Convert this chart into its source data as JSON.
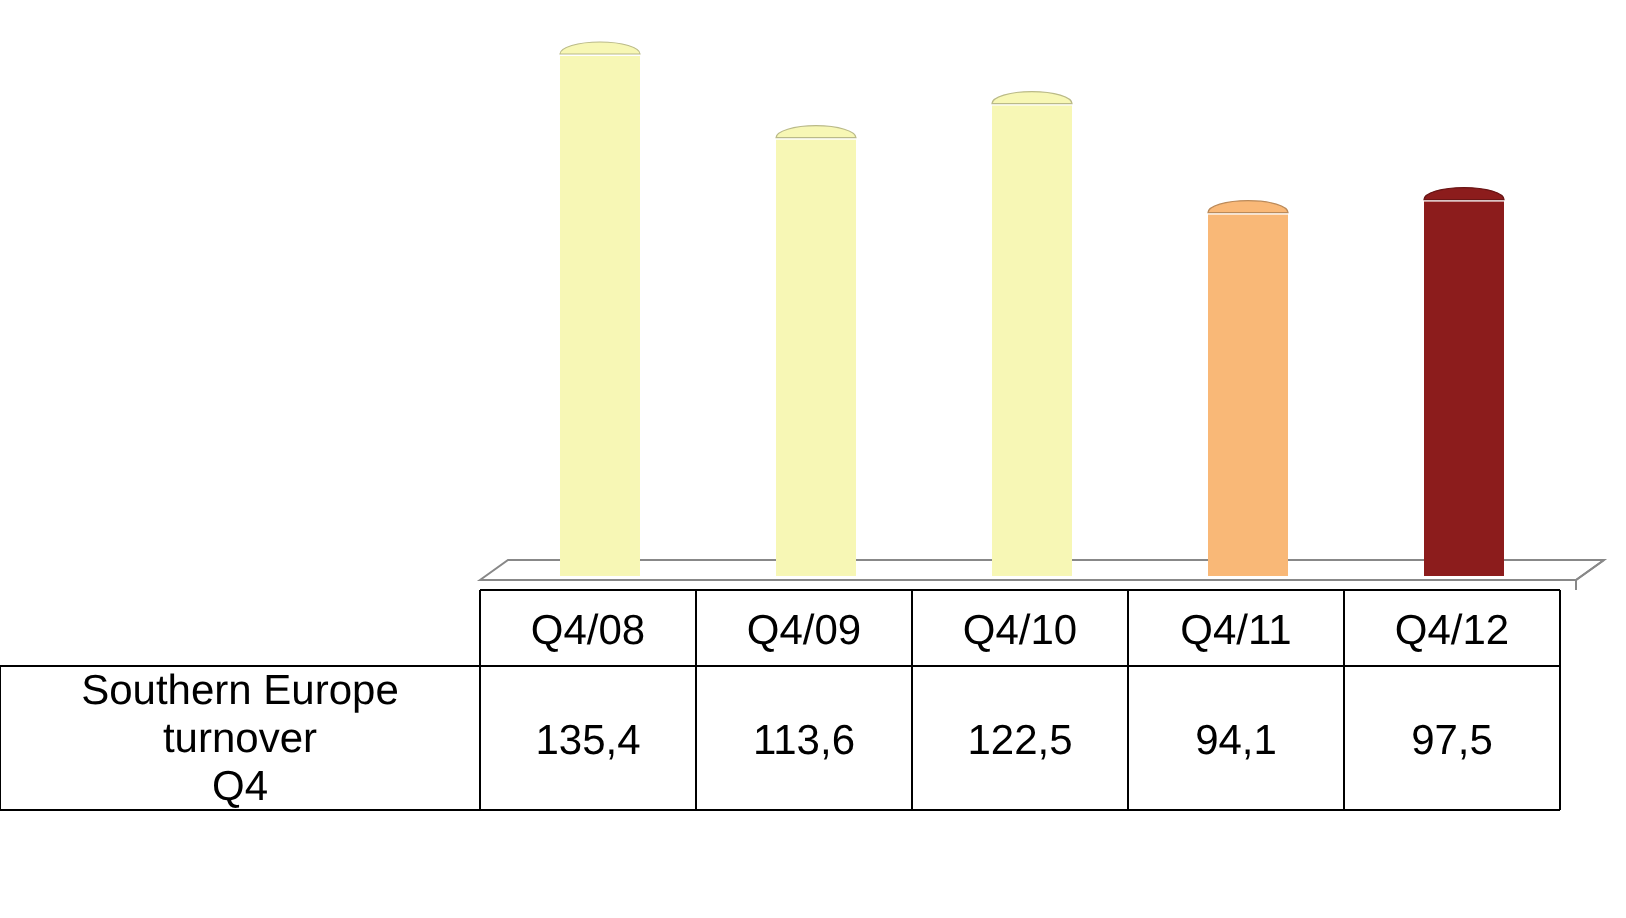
{
  "chart_data": {
    "type": "bar",
    "categories": [
      "Q4/08",
      "Q4/09",
      "Q4/10",
      "Q4/11",
      "Q4/12"
    ],
    "series": [
      {
        "name": "Southern Europe\nturnover\nQ4",
        "values": [
          135.4,
          113.6,
          122.5,
          94.1,
          97.5
        ],
        "colors": [
          "#f7f7b5",
          "#f7f7b5",
          "#f7f7b5",
          "#f9b877",
          "#8c1c1c"
        ],
        "value_labels": [
          "135,4",
          "113,6",
          "122,5",
          "94,1",
          "97,5"
        ]
      }
    ]
  }
}
